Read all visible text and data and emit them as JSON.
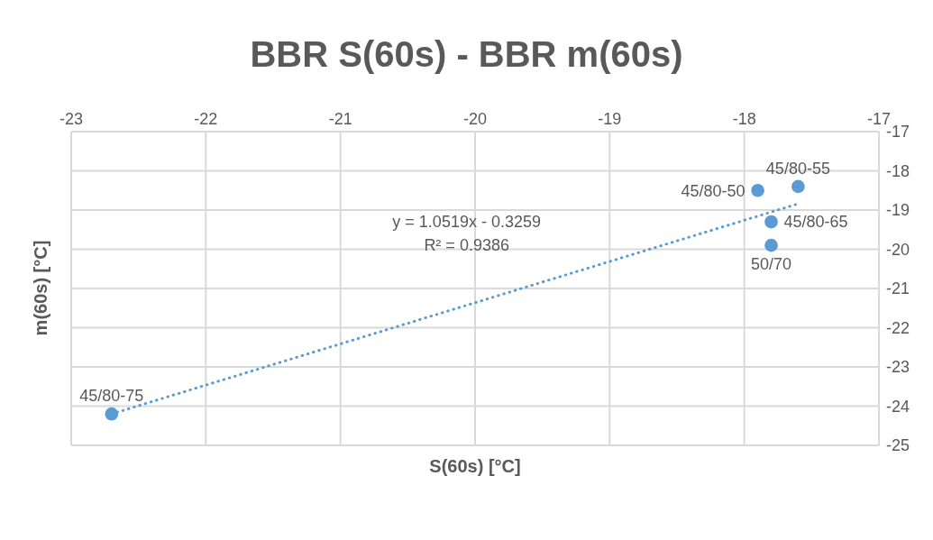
{
  "chart_data": {
    "type": "scatter",
    "title": "BBR S(60s) - BBR m(60s)",
    "xlabel": "S(60s) [°C]",
    "ylabel": "m(60s) [°C]",
    "series": [
      {
        "color": "#5b9bd5",
        "x": [
          -22.7,
          -17.9,
          -17.6,
          -17.8,
          -17.8
        ],
        "values": [
          -24.2,
          -18.5,
          -18.4,
          -19.3,
          -19.9
        ],
        "marker": "circle"
      },
      {
        "type": "line",
        "color": "#5b9bd5",
        "x": [
          -22.7,
          -17.6
        ],
        "values": [
          -24.2,
          -18.84
        ],
        "line_style": "dotted",
        "marker": "none"
      }
    ],
    "annotations": [
      {
        "text": "45/80-75",
        "x": -22.7,
        "y": -24.2
      },
      {
        "text": "45/80-50",
        "x": -17.9,
        "y": -18.5
      },
      {
        "text": "45/80-55",
        "x": -17.6,
        "y": -18.4
      },
      {
        "text": "45/80-65",
        "x": -17.8,
        "y": -19.3
      },
      {
        "text": "50/70",
        "x": -17.8,
        "y": -19.9
      },
      "y = 1.0519x - 0.3259",
      "R² = 0.9386"
    ],
    "xlim": [
      -23,
      -17
    ],
    "xticks": [
      -23,
      -22,
      -21,
      -20,
      -19,
      -18,
      -17
    ],
    "ylim": [
      -25,
      -17
    ],
    "yticks": [
      -25,
      -24,
      -23,
      -22,
      -21,
      -20,
      -19,
      -18,
      -17
    ],
    "grid": true,
    "legend": false
  }
}
